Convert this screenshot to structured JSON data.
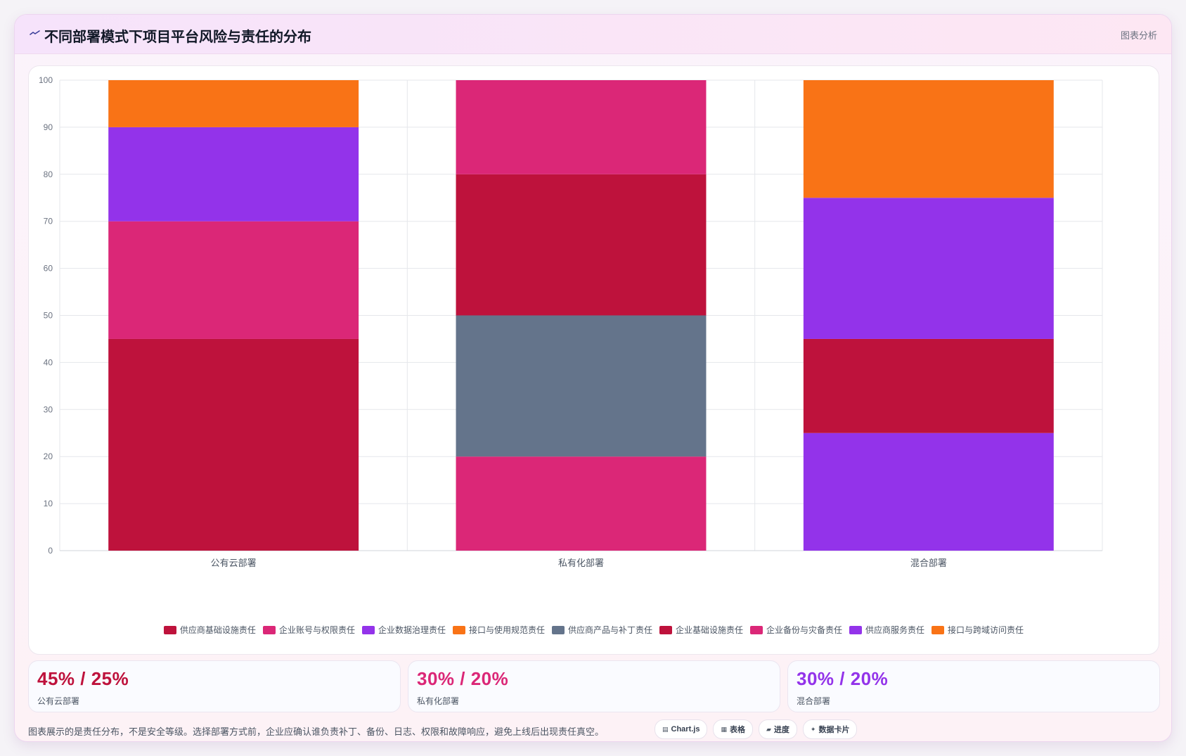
{
  "header": {
    "title": "不同部署模式下项目平台风险与责任的分布",
    "right_label": "图表分析"
  },
  "chart_data": {
    "type": "bar",
    "stacked": true,
    "categories": [
      "公有云部署",
      "私有化部署",
      "混合部署"
    ],
    "ylim": [
      0,
      100
    ],
    "yticks": [
      0,
      10,
      20,
      30,
      40,
      50,
      60,
      70,
      80,
      90,
      100
    ],
    "grid": true,
    "legend_position": "bottom",
    "series": [
      {
        "name": "供应商基础设施责任",
        "color": "#be123c",
        "values": [
          45,
          0,
          0
        ]
      },
      {
        "name": "企业账号与权限责任",
        "color": "#db2777",
        "values": [
          25,
          0,
          0
        ]
      },
      {
        "name": "企业数据治理责任",
        "color": "#9333ea",
        "values": [
          20,
          0,
          0
        ]
      },
      {
        "name": "接口与使用规范责任",
        "color": "#f97316",
        "values": [
          10,
          0,
          0
        ]
      },
      {
        "name": "供应商产品与补丁责任",
        "color": "#64748b",
        "values": [
          0,
          30,
          0
        ]
      },
      {
        "name": "企业基础设施责任",
        "color": "#be123c",
        "values": [
          0,
          30,
          20
        ]
      },
      {
        "name": "企业备份与灾备责任",
        "color": "#db2777",
        "values": [
          0,
          40,
          0
        ]
      },
      {
        "name": "供应商服务责任",
        "color": "#9333ea",
        "values": [
          0,
          0,
          55
        ]
      },
      {
        "name": "接口与跨域访问责任",
        "color": "#f97316",
        "values": [
          0,
          0,
          25
        ]
      }
    ],
    "segment_order": [
      [
        "供应商基础设施责任",
        "企业账号与权限责任",
        "企业数据治理责任",
        "接口与使用规范责任"
      ],
      [
        "企业备份与灾备责任",
        "供应商产品与补丁责任",
        "企业基础设施责任",
        "企业备份与灾备责任"
      ],
      [
        "供应商服务责任",
        "企业基础设施责任",
        "供应商服务责任",
        "接口与跨域访问责任"
      ]
    ],
    "segment_values": [
      [
        45,
        25,
        20,
        10
      ],
      [
        20,
        30,
        30,
        20
      ],
      [
        25,
        20,
        30,
        25
      ]
    ]
  },
  "stats": [
    {
      "value": "45% / 25%",
      "label": "公有云部署",
      "color": "#be123c"
    },
    {
      "value": "30% / 20%",
      "label": "私有化部署",
      "color": "#db2777"
    },
    {
      "value": "30% / 20%",
      "label": "混合部署",
      "color": "#9333ea"
    }
  ],
  "footer": {
    "note": "图表展示的是责任分布，不是安全等级。选择部署方式前，企业应确认谁负责补丁、备份、日志、权限和故障响应，避免上线后出现责任真空。",
    "chips": [
      {
        "icon": "▤",
        "label": "Chart.js"
      },
      {
        "icon": "▦",
        "label": "表格"
      },
      {
        "icon": "▰",
        "label": "进度"
      },
      {
        "icon": "✦",
        "label": "数据卡片"
      }
    ]
  }
}
